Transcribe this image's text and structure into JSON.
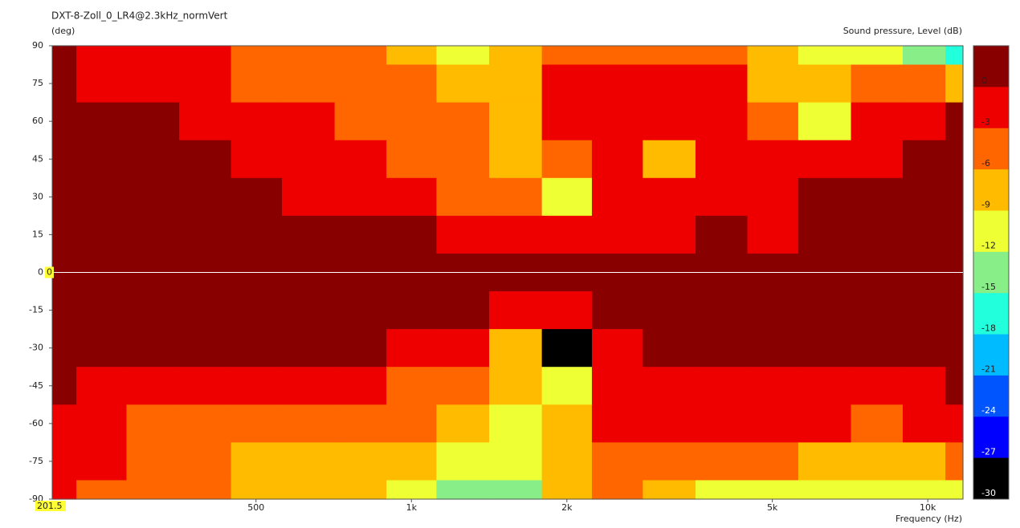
{
  "chart_data": {
    "type": "contour",
    "title": "DXT-8-Zoll_0_LR4@2.3kHz_normVert",
    "y_label": "(deg)",
    "z_label": "Sound pressure, Level  (dB)",
    "x_label": "Frequency  (Hz)",
    "x_log": true,
    "xlim": [
      201.5,
      11700
    ],
    "xticks": [
      500,
      {
        "value": 1000,
        "label": "1k"
      },
      {
        "value": 2000,
        "label": "2k"
      },
      {
        "value": 5000,
        "label": "5k"
      },
      {
        "value": 10000,
        "label": "10k"
      }
    ],
    "ylim": [
      -90,
      90
    ],
    "yticks": [
      90,
      75,
      60,
      45,
      30,
      15,
      0,
      -15,
      -30,
      -45,
      -60,
      -75,
      -90
    ],
    "cursor_x": 201.5,
    "cursor_y": 0,
    "x": [
      201.5,
      250,
      315,
      400,
      500,
      630,
      800,
      1000,
      1250,
      1600,
      2000,
      2500,
      3150,
      4000,
      5000,
      6300,
      8000,
      10000,
      11700
    ],
    "y": [
      90,
      75,
      60,
      45,
      30,
      15,
      0,
      -15,
      -30,
      -45,
      -60,
      -75,
      -90
    ],
    "z": [
      [
        -2,
        -4,
        -4,
        -5,
        -7,
        -7,
        -8,
        -10,
        -12,
        -11,
        -7,
        -7,
        -8,
        -8,
        -10,
        -13,
        -14,
        -16,
        -18
      ],
      [
        -1,
        -3,
        -4,
        -4,
        -6,
        -7,
        -7,
        -8,
        -10,
        -11,
        -5,
        -4,
        -4,
        -5,
        -10,
        -11,
        -7,
        -8,
        -9
      ],
      [
        -1,
        -1,
        -2,
        -4,
        -4,
        -5,
        -7,
        -7,
        -8,
        -10,
        -5,
        -4,
        -3,
        -4,
        -8,
        -13,
        -5,
        -3,
        -2
      ],
      [
        -1,
        -1,
        -1,
        -2,
        -4,
        -4,
        -5,
        -7,
        -7,
        -11,
        -7,
        -4,
        -9,
        -4,
        -4,
        -4,
        -3,
        -2,
        -2
      ],
      [
        0,
        -1,
        -1,
        -1,
        -2,
        -3,
        -4,
        -4,
        -6,
        -8,
        -13,
        -5,
        -4,
        -3,
        -3,
        -2,
        -2,
        -2,
        -1
      ],
      [
        0,
        0,
        0,
        -1,
        -1,
        -1,
        -2,
        -2,
        -4,
        -4,
        -4,
        -4,
        -3,
        -2,
        -3,
        -2,
        -2,
        -1,
        -2
      ],
      [
        0,
        0,
        0,
        0,
        0,
        0,
        0,
        0,
        0,
        0,
        0,
        0,
        0,
        0,
        0,
        0,
        0,
        0,
        0
      ],
      [
        0,
        0,
        0,
        0,
        0,
        0,
        -1,
        -1,
        -2,
        -4,
        -4,
        -2,
        -1,
        -1,
        -1,
        -1,
        -1,
        -1,
        -1
      ],
      [
        -1,
        -1,
        -1,
        -2,
        -2,
        -2,
        -2,
        -3,
        -5,
        -9,
        -30,
        -4,
        -2,
        -2,
        -1,
        -2,
        -2,
        -2,
        -1
      ],
      [
        -2,
        -3,
        -4,
        -4,
        -4,
        -4,
        -5,
        -6,
        -8,
        -11,
        -12,
        -4,
        -3,
        -3,
        -3,
        -4,
        -4,
        -3,
        -2
      ],
      [
        -4,
        -5,
        -6,
        -6,
        -7,
        -7,
        -7,
        -8,
        -10,
        -12,
        -9,
        -5,
        -5,
        -5,
        -5,
        -5,
        -6,
        -4,
        -4
      ],
      [
        -5,
        -5,
        -7,
        -8,
        -9,
        -9,
        -9,
        -10,
        -12,
        -14,
        -11,
        -7,
        -8,
        -8,
        -8,
        -9,
        -10,
        -9,
        -7
      ],
      [
        -5,
        -6,
        -7,
        -8,
        -10,
        -10,
        -10,
        -12,
        -15,
        -16,
        -10,
        -8,
        -11,
        -12,
        -12,
        -14,
        -12,
        -12,
        -12
      ]
    ],
    "levels": [
      0,
      -3,
      -6,
      -9,
      -12,
      -15,
      -18,
      -21,
      -24,
      -27,
      -30
    ],
    "colors": [
      "#880000",
      "#ee0000",
      "#ff6600",
      "#ffbb00",
      "#eeff33",
      "#88ee88",
      "#22ffdd",
      "#00bbff",
      "#0055ff",
      "#0000ff",
      "#000000"
    ]
  }
}
